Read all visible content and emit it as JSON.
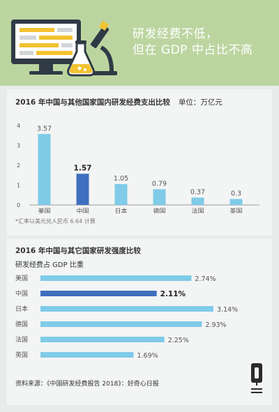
{
  "header": {
    "title_line1": "研发经费不低，",
    "title_line2": "但在 GDP 中占比不高"
  },
  "chart1": {
    "title": "2016 年中国与其他国家国内研发经费支出比较",
    "unit": "单位：万亿元",
    "note": "*汇率以美元兑人民币 6.64 计算"
  },
  "chart2": {
    "title": "2016 年中国与其它国家研发强度比较",
    "subtitle": "研发经费占 GDP 比重"
  },
  "footer": {
    "source": "资料来源：《中国研发经费报告 2018》：好奇心日报"
  },
  "colors": {
    "header_bg": "#bcd5a0",
    "bar_light": "#7fcbe8",
    "bar_highlight": "#3f6fbf",
    "label_highlight": "#222222"
  },
  "chart_data": [
    {
      "type": "bar",
      "title": "2016 年中国与其他国家国内研发经费支出比较",
      "categories": [
        "美国",
        "中国",
        "日本",
        "德国",
        "法国",
        "英国"
      ],
      "values": [
        3.57,
        1.57,
        1.05,
        0.79,
        0.37,
        0.3
      ],
      "value_labels": [
        "3.57",
        "1.57",
        "1.05",
        "0.79",
        "0.37",
        "0.3"
      ],
      "yticks": [
        "0",
        "1",
        "2",
        "3",
        "4"
      ],
      "ylim": [
        0,
        4
      ],
      "highlight": "中国",
      "grid": false
    },
    {
      "type": "bar",
      "orientation": "horizontal",
      "title": "2016 年中国与其它国家研发强度比较",
      "categories": [
        "美国",
        "中国",
        "日本",
        "德国",
        "法国",
        "英国"
      ],
      "values": [
        2.74,
        2.11,
        3.14,
        2.93,
        2.25,
        1.69
      ],
      "value_labels": [
        "2.74%",
        "2.11%",
        "3.14%",
        "2.93%",
        "2.25%",
        "1.69%"
      ],
      "highlight": "中国",
      "grid": false
    }
  ]
}
